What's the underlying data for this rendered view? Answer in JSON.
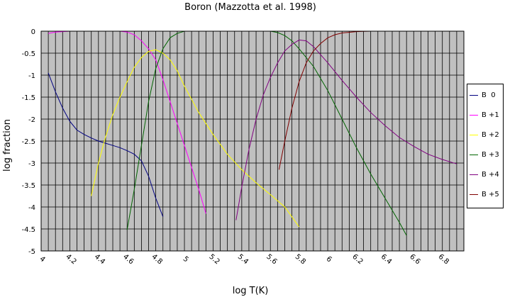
{
  "chart_data": {
    "type": "line",
    "title": "Boron (Mazzotta et al.  1998)",
    "xlabel": "log T(K)",
    "ylabel": "log fraction",
    "xlim": [
      4.0,
      6.95
    ],
    "ylim": [
      -5,
      0
    ],
    "x_ticks": [
      4.0,
      4.2,
      4.4,
      4.6,
      4.8,
      5.0,
      5.2,
      5.4,
      5.6,
      5.8,
      6.0,
      6.2,
      6.4,
      6.6,
      6.8
    ],
    "x_tick_labels": [
      "4",
      "4.2",
      "4.4",
      "4.6",
      "4.8",
      "5",
      "5.2",
      "5.4",
      "5.6",
      "5.8",
      "6",
      "6.2",
      "6.4",
      "6.6",
      "6.8"
    ],
    "y_ticks": [
      0,
      -0.5,
      -1,
      -1.5,
      -2,
      -2.5,
      -3,
      -3.5,
      -4,
      -4.5,
      -5
    ],
    "y_tick_labels": [
      "0",
      "-0.5",
      "-1",
      "-1.5",
      "-2",
      "-2.5",
      "-3",
      "-3.5",
      "-4",
      "-4.5",
      "-5"
    ],
    "grid": true,
    "plot_background": "#c0c0c0",
    "legend_position": "right",
    "series": [
      {
        "name": "B  0",
        "color": "#000080",
        "x": [
          4.05,
          4.1,
          4.15,
          4.2,
          4.25,
          4.3,
          4.35,
          4.4,
          4.45,
          4.5,
          4.55,
          4.6,
          4.65,
          4.7,
          4.75,
          4.8,
          4.85
        ],
        "y": [
          -0.95,
          -1.38,
          -1.75,
          -2.05,
          -2.25,
          -2.35,
          -2.43,
          -2.5,
          -2.55,
          -2.6,
          -2.65,
          -2.72,
          -2.8,
          -2.95,
          -3.3,
          -3.8,
          -4.22
        ]
      },
      {
        "name": "B +1",
        "color": "#ff00ff",
        "x": [
          4.05,
          4.1,
          4.2,
          4.3,
          4.4,
          4.5,
          4.55,
          4.6,
          4.65,
          4.7,
          4.75,
          4.8,
          4.85,
          4.9,
          4.95,
          5.0,
          5.05,
          5.1,
          5.15
        ],
        "y": [
          -0.05,
          -0.02,
          0,
          0,
          0,
          0,
          0,
          -0.02,
          -0.08,
          -0.22,
          -0.4,
          -0.65,
          -1.1,
          -1.6,
          -2.1,
          -2.6,
          -3.1,
          -3.6,
          -4.15
        ]
      },
      {
        "name": "B +2",
        "color": "#ffff00",
        "x": [
          4.35,
          4.4,
          4.45,
          4.5,
          4.55,
          4.6,
          4.65,
          4.7,
          4.75,
          4.8,
          4.85,
          4.9,
          4.95,
          5.0,
          5.1,
          5.2,
          5.3,
          5.4,
          5.5,
          5.6,
          5.7,
          5.8
        ],
        "y": [
          -3.75,
          -3.0,
          -2.4,
          -1.9,
          -1.5,
          -1.15,
          -0.82,
          -0.6,
          -0.46,
          -0.42,
          -0.5,
          -0.65,
          -0.9,
          -1.25,
          -1.85,
          -2.35,
          -2.8,
          -3.15,
          -3.45,
          -3.72,
          -4.0,
          -4.45
        ]
      },
      {
        "name": "B +3",
        "color": "#006400",
        "x": [
          4.6,
          4.65,
          4.7,
          4.75,
          4.8,
          4.85,
          4.9,
          4.95,
          5.0,
          5.1,
          5.2,
          5.3,
          5.4,
          5.5,
          5.6,
          5.65,
          5.7,
          5.75,
          5.8,
          5.9,
          6.0,
          6.1,
          6.2,
          6.3,
          6.4,
          6.5,
          6.55
        ],
        "y": [
          -4.52,
          -3.6,
          -2.6,
          -1.6,
          -0.85,
          -0.4,
          -0.15,
          -0.05,
          0,
          0,
          0,
          0,
          0,
          0,
          0,
          -0.03,
          -0.1,
          -0.22,
          -0.4,
          -0.8,
          -1.35,
          -2.0,
          -2.65,
          -3.25,
          -3.8,
          -4.35,
          -4.65
        ]
      },
      {
        "name": "B +4",
        "color": "#800080",
        "x": [
          5.36,
          5.4,
          5.45,
          5.5,
          5.55,
          5.6,
          5.65,
          5.7,
          5.75,
          5.8,
          5.85,
          5.9,
          6.0,
          6.1,
          6.2,
          6.3,
          6.4,
          6.5,
          6.6,
          6.7,
          6.8,
          6.9
        ],
        "y": [
          -4.3,
          -3.55,
          -2.7,
          -2.0,
          -1.45,
          -1.05,
          -0.72,
          -0.45,
          -0.3,
          -0.2,
          -0.22,
          -0.35,
          -0.72,
          -1.12,
          -1.5,
          -1.85,
          -2.15,
          -2.42,
          -2.62,
          -2.8,
          -2.92,
          -3.02
        ]
      },
      {
        "name": "B +5",
        "color": "#800000",
        "x": [
          5.66,
          5.7,
          5.75,
          5.8,
          5.85,
          5.9,
          5.95,
          6.0,
          6.05,
          6.1,
          6.2,
          6.3,
          6.4,
          6.5,
          6.6,
          6.7,
          6.8,
          6.9
        ],
        "y": [
          -3.15,
          -2.5,
          -1.75,
          -1.15,
          -0.72,
          -0.45,
          -0.28,
          -0.15,
          -0.08,
          -0.04,
          -0.01,
          0,
          0,
          0,
          0,
          0,
          0,
          0
        ]
      }
    ]
  }
}
